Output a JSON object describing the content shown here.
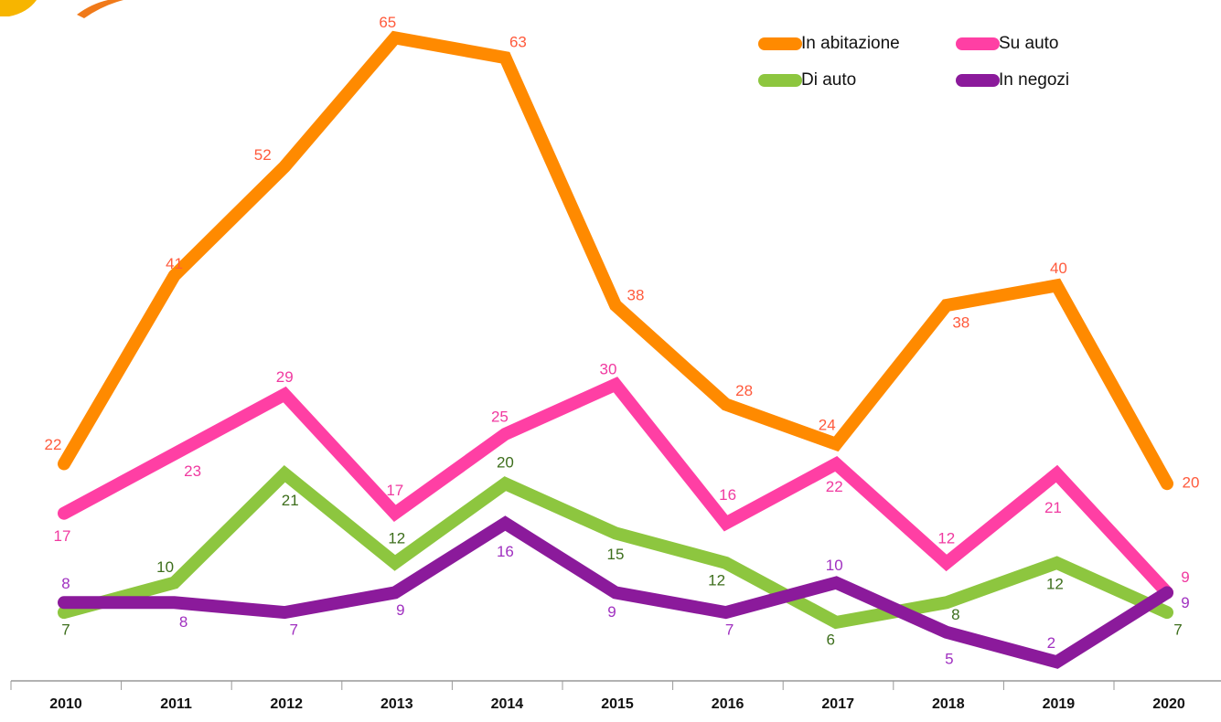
{
  "chart_data": {
    "type": "line",
    "categories": [
      "2010",
      "2011",
      "2012",
      "2013",
      "2014",
      "2015",
      "2016",
      "2017",
      "2018",
      "2019",
      "2020"
    ],
    "series": [
      {
        "name": "In abitazione",
        "color": "#ff8a00",
        "label_color": "#ff5a3c",
        "values": [
          22,
          41,
          52,
          65,
          63,
          38,
          28,
          24,
          38,
          40,
          20
        ]
      },
      {
        "name": "Su auto",
        "color": "#ff3fa4",
        "label_color": "#f03aa0",
        "values": [
          17,
          23,
          29,
          17,
          25,
          30,
          16,
          22,
          12,
          21,
          9
        ]
      },
      {
        "name": "Di auto",
        "color": "#8dc63f",
        "label_color": "#3d6e1c",
        "values": [
          7,
          10,
          21,
          12,
          20,
          15,
          12,
          6,
          8,
          12,
          7
        ]
      },
      {
        "name": "In negozi",
        "color": "#8b1a9b",
        "label_color": "#a030c0",
        "values": [
          8,
          8,
          7,
          9,
          16,
          9,
          7,
          10,
          5,
          2,
          9
        ]
      }
    ]
  }
}
